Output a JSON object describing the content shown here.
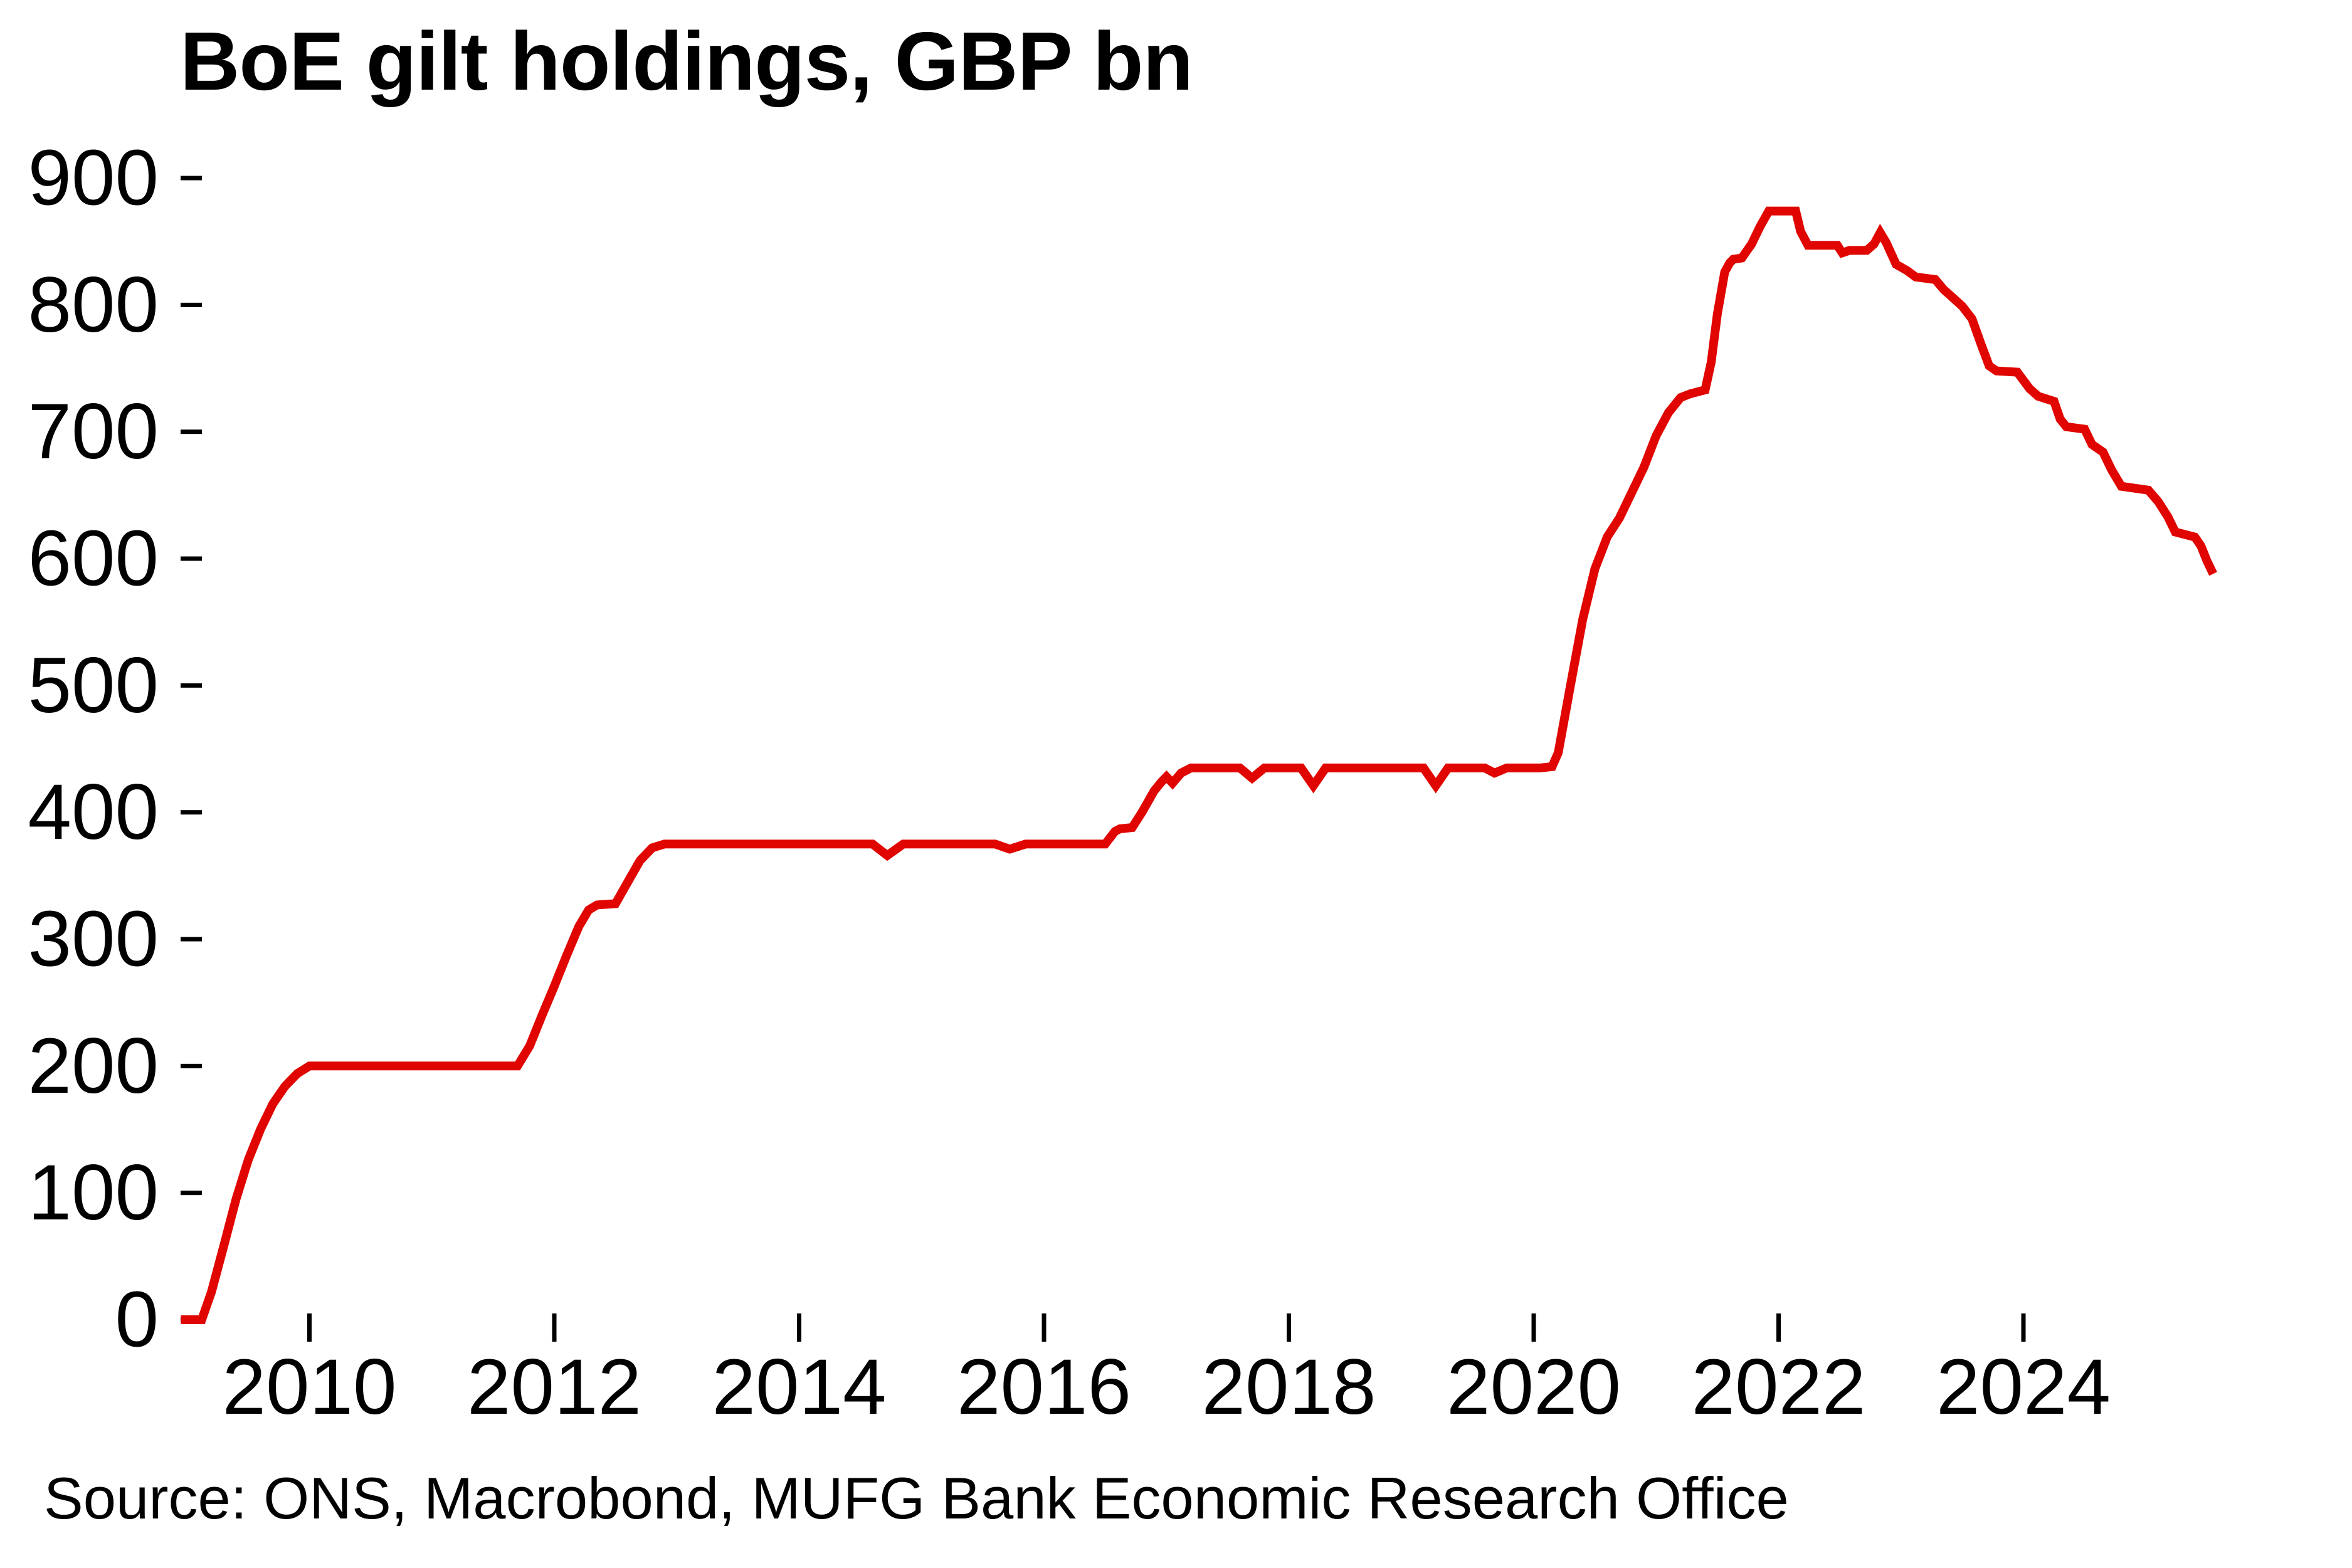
{
  "header": {
    "title": "BoE gilt holdings, GBP bn"
  },
  "footer": {
    "source": "Source: ONS, Macrobond, MUFG Bank Economic Research Office"
  },
  "chart_data": {
    "type": "line",
    "title": "BoE gilt holdings, GBP bn",
    "xlabel": "",
    "ylabel": "",
    "ylim": [
      0,
      900
    ],
    "xlim": [
      2008.9,
      2025.75
    ],
    "grid": false,
    "legend_position": "none",
    "y_ticks": [
      0,
      100,
      200,
      300,
      400,
      500,
      600,
      700,
      800,
      900
    ],
    "x_ticks": [
      2010,
      2012,
      2014,
      2016,
      2018,
      2020,
      2022,
      2024
    ],
    "line_color": "#e00500",
    "text_color": "#000000",
    "series": [
      {
        "name": "BoE gilt holdings",
        "points": [
          [
            2008.95,
            0
          ],
          [
            2009.12,
            0
          ],
          [
            2009.2,
            22
          ],
          [
            2009.3,
            58
          ],
          [
            2009.4,
            95
          ],
          [
            2009.5,
            126
          ],
          [
            2009.6,
            150
          ],
          [
            2009.7,
            170
          ],
          [
            2009.8,
            184
          ],
          [
            2009.9,
            194
          ],
          [
            2010.0,
            200
          ],
          [
            2011.7,
            200
          ],
          [
            2011.8,
            216
          ],
          [
            2011.9,
            240
          ],
          [
            2012.0,
            263
          ],
          [
            2012.1,
            287
          ],
          [
            2012.2,
            310
          ],
          [
            2012.28,
            323
          ],
          [
            2012.35,
            327
          ],
          [
            2012.5,
            328
          ],
          [
            2012.6,
            345
          ],
          [
            2012.7,
            362
          ],
          [
            2012.8,
            372
          ],
          [
            2012.9,
            375
          ],
          [
            2014.6,
            375
          ],
          [
            2014.72,
            366
          ],
          [
            2014.85,
            375
          ],
          [
            2015.6,
            375
          ],
          [
            2015.72,
            371
          ],
          [
            2015.85,
            375
          ],
          [
            2016.5,
            375
          ],
          [
            2016.58,
            385
          ],
          [
            2016.62,
            387
          ],
          [
            2016.72,
            388
          ],
          [
            2016.8,
            400
          ],
          [
            2016.9,
            417
          ],
          [
            2016.96,
            424
          ],
          [
            2017.0,
            428
          ],
          [
            2017.05,
            423
          ],
          [
            2017.12,
            431
          ],
          [
            2017.2,
            435
          ],
          [
            2017.6,
            435
          ],
          [
            2017.7,
            427
          ],
          [
            2017.8,
            435
          ],
          [
            2018.1,
            435
          ],
          [
            2018.2,
            421
          ],
          [
            2018.3,
            435
          ],
          [
            2019.1,
            435
          ],
          [
            2019.2,
            421
          ],
          [
            2019.3,
            435
          ],
          [
            2019.6,
            435
          ],
          [
            2019.68,
            431
          ],
          [
            2019.78,
            435
          ],
          [
            2020.05,
            435
          ],
          [
            2020.15,
            436
          ],
          [
            2020.2,
            447
          ],
          [
            2020.3,
            500
          ],
          [
            2020.4,
            552
          ],
          [
            2020.5,
            592
          ],
          [
            2020.6,
            617
          ],
          [
            2020.7,
            632
          ],
          [
            2020.8,
            652
          ],
          [
            2020.9,
            672
          ],
          [
            2021.0,
            697
          ],
          [
            2021.1,
            715
          ],
          [
            2021.2,
            727
          ],
          [
            2021.28,
            730
          ],
          [
            2021.4,
            733
          ],
          [
            2021.45,
            755
          ],
          [
            2021.5,
            793
          ],
          [
            2021.56,
            826
          ],
          [
            2021.6,
            833
          ],
          [
            2021.63,
            836
          ],
          [
            2021.7,
            837
          ],
          [
            2021.78,
            848
          ],
          [
            2021.85,
            862
          ],
          [
            2021.92,
            874
          ],
          [
            2022.14,
            874
          ],
          [
            2022.18,
            858
          ],
          [
            2022.24,
            847
          ],
          [
            2022.48,
            847
          ],
          [
            2022.52,
            841
          ],
          [
            2022.58,
            843
          ],
          [
            2022.72,
            843
          ],
          [
            2022.78,
            848
          ],
          [
            2022.83,
            857
          ],
          [
            2022.88,
            849
          ],
          [
            2022.96,
            832
          ],
          [
            2023.05,
            827
          ],
          [
            2023.12,
            822
          ],
          [
            2023.28,
            820
          ],
          [
            2023.35,
            812
          ],
          [
            2023.42,
            806
          ],
          [
            2023.5,
            799
          ],
          [
            2023.58,
            789
          ],
          [
            2023.65,
            770
          ],
          [
            2023.72,
            752
          ],
          [
            2023.78,
            748
          ],
          [
            2023.95,
            747
          ],
          [
            2024.05,
            734
          ],
          [
            2024.12,
            728
          ],
          [
            2024.25,
            724
          ],
          [
            2024.3,
            710
          ],
          [
            2024.35,
            704
          ],
          [
            2024.5,
            702
          ],
          [
            2024.56,
            690
          ],
          [
            2024.65,
            684
          ],
          [
            2024.72,
            670
          ],
          [
            2024.8,
            657
          ],
          [
            2025.02,
            654
          ],
          [
            2025.1,
            645
          ],
          [
            2025.18,
            633
          ],
          [
            2025.24,
            621
          ],
          [
            2025.4,
            617
          ],
          [
            2025.45,
            610
          ],
          [
            2025.5,
            598
          ],
          [
            2025.55,
            588
          ]
        ]
      }
    ]
  }
}
